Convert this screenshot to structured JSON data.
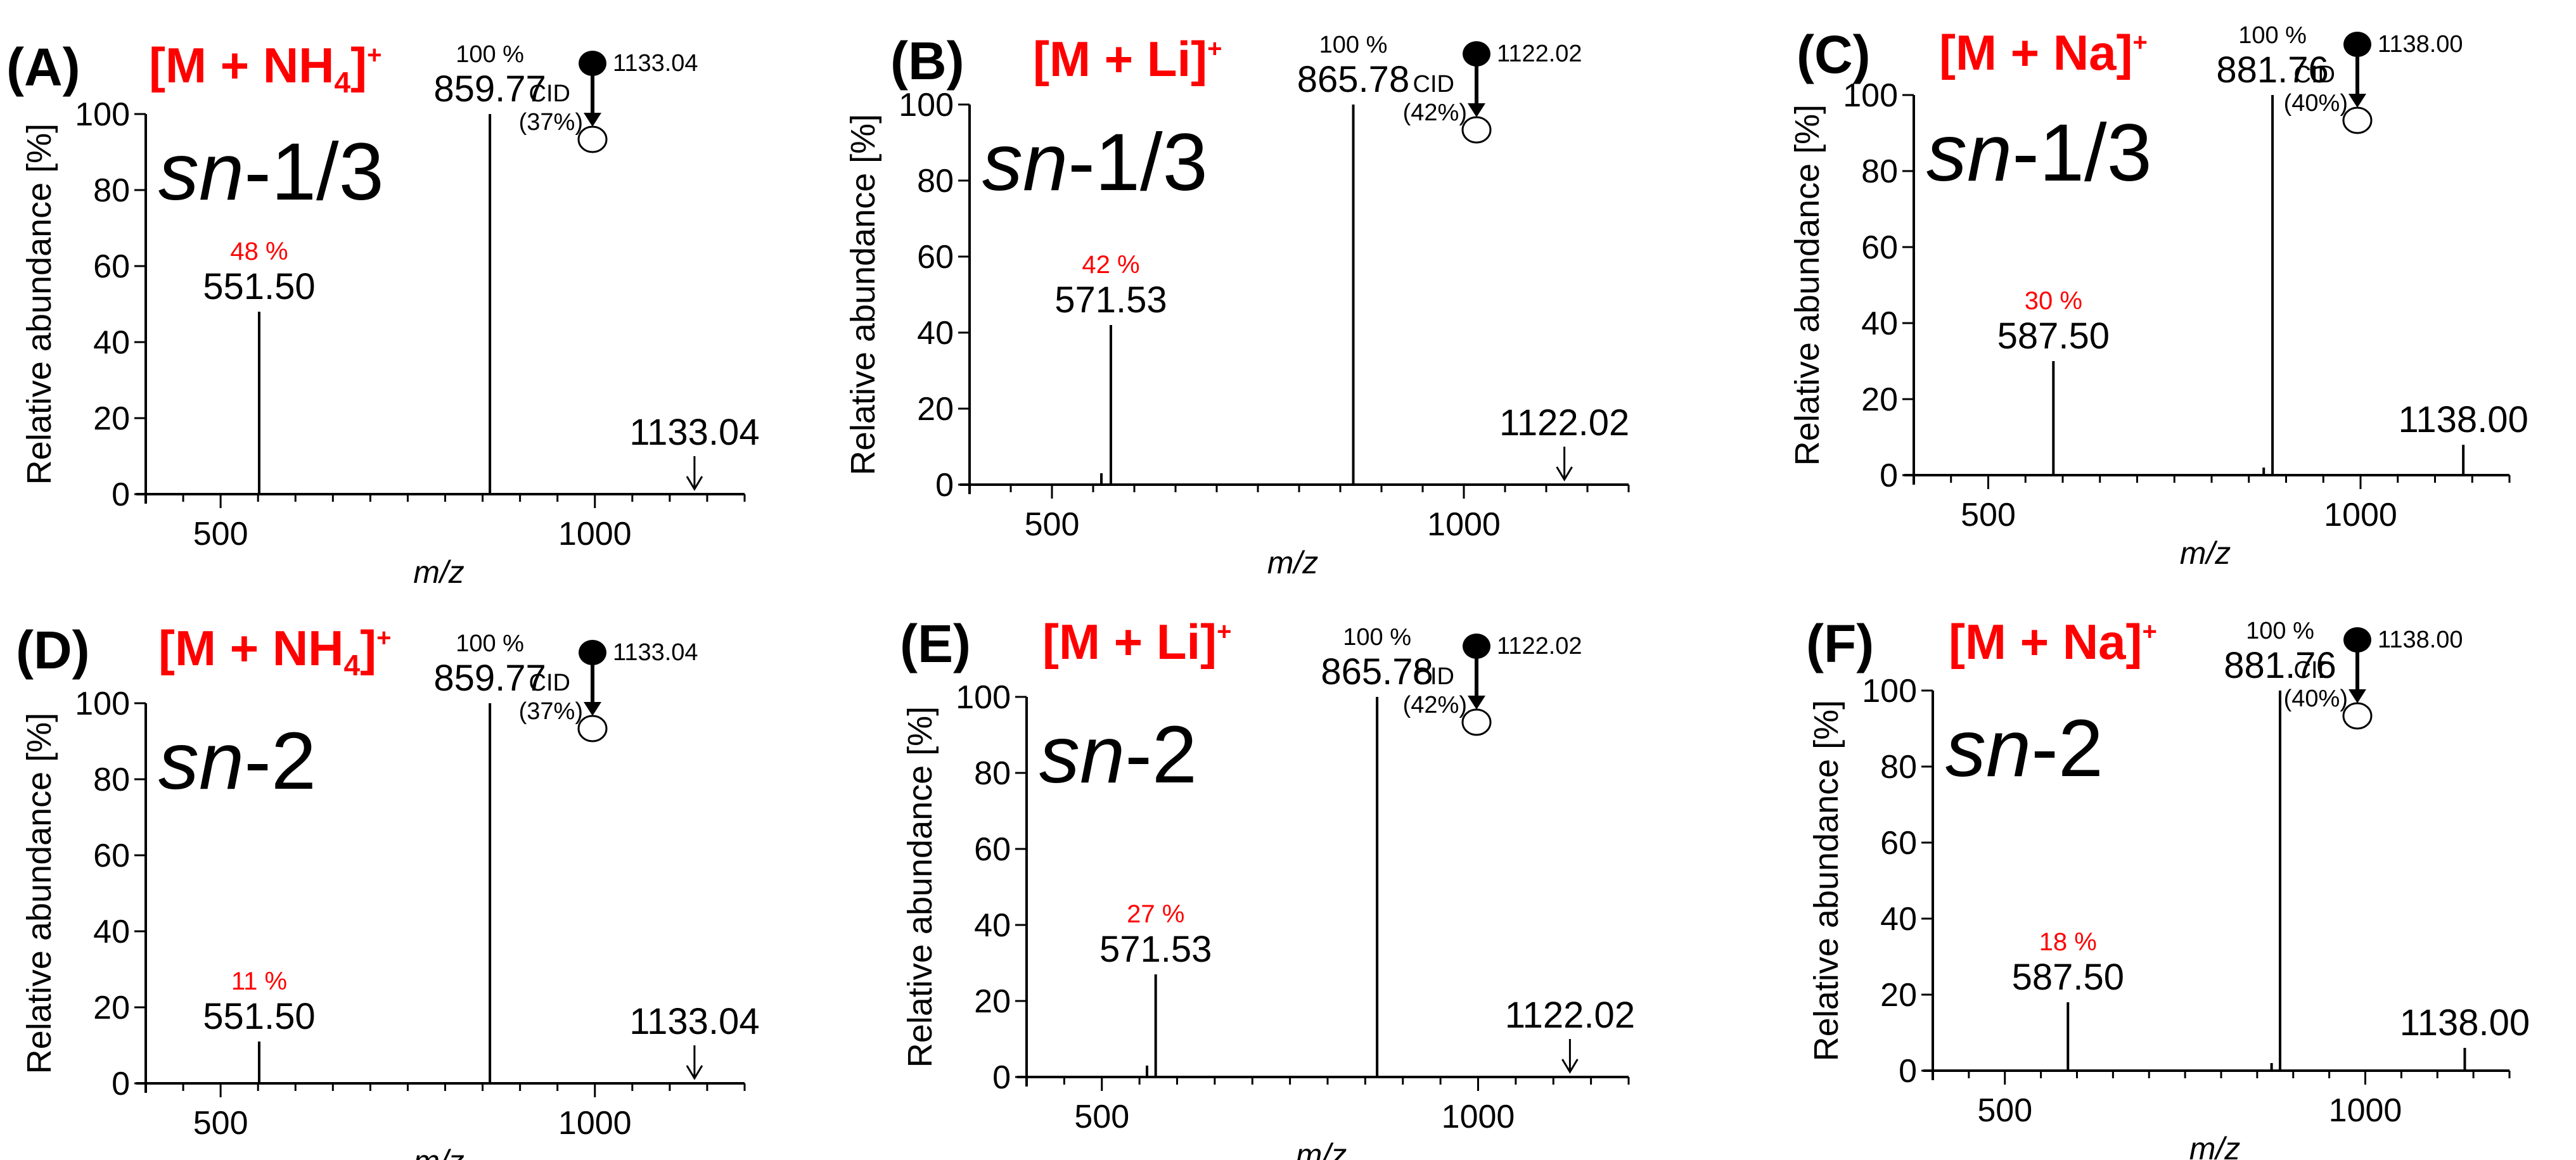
{
  "figure": {
    "ylabel": "Relative abundance [%]",
    "xlabel": "m/z",
    "cid_label": "CID",
    "percent_suffix": " %"
  },
  "chart_data": [
    {
      "type": "bar",
      "panel": "(A)",
      "adduct": "[M + NH",
      "adduct_sub": "4",
      "adduct_close": "]",
      "adduct_sup": "+",
      "position_prefix": "sn",
      "position_suffix": "-1/3",
      "precursor_label": "1133.04",
      "cid_energy": "(37%)",
      "xlim": [
        400,
        1200
      ],
      "ylim": [
        0,
        100
      ],
      "xticks": [
        500,
        1000
      ],
      "yticks": [
        0,
        20,
        40,
        60,
        80,
        100
      ],
      "show_xlabel": true,
      "peaks": [
        {
          "mz": 551.5,
          "label": "551.50",
          "value": 48,
          "pct_label": "48 %",
          "pct_color": "#ff0000"
        },
        {
          "mz": 859.77,
          "label": "859.77",
          "value": 100,
          "pct_label": "100 %",
          "pct_color": "#000000"
        },
        {
          "mz": 1133.04,
          "label": "1133.04",
          "value": 0,
          "arrow": true
        }
      ]
    },
    {
      "type": "bar",
      "panel": "(B)",
      "adduct": "[M + Li]",
      "adduct_sub": "",
      "adduct_close": "",
      "adduct_sup": "+",
      "position_prefix": "sn",
      "position_suffix": "-1/3",
      "precursor_label": "1122.02",
      "cid_energy": "(42%)",
      "xlim": [
        400,
        1200
      ],
      "ylim": [
        0,
        100
      ],
      "xticks": [
        500,
        1000
      ],
      "yticks": [
        0,
        20,
        40,
        60,
        80,
        100
      ],
      "show_xlabel": true,
      "peaks": [
        {
          "mz": 560.0,
          "label": "",
          "value": 3
        },
        {
          "mz": 571.53,
          "label": "571.53",
          "value": 42,
          "pct_label": "42 %",
          "pct_color": "#ff0000"
        },
        {
          "mz": 865.78,
          "label": "865.78",
          "value": 100,
          "pct_label": "100 %",
          "pct_color": "#000000"
        },
        {
          "mz": 1122.02,
          "label": "1122.02",
          "value": 0,
          "arrow": true
        }
      ]
    },
    {
      "type": "bar",
      "panel": "(C)",
      "adduct": "[M + Na]",
      "adduct_sub": "",
      "adduct_close": "",
      "adduct_sup": "+",
      "position_prefix": "sn",
      "position_suffix": "-1/3",
      "precursor_label": "1138.00",
      "cid_energy": "(40%)",
      "xlim": [
        400,
        1200
      ],
      "ylim": [
        0,
        100
      ],
      "xticks": [
        500,
        1000
      ],
      "yticks": [
        0,
        20,
        40,
        60,
        80,
        100
      ],
      "show_xlabel": true,
      "peaks": [
        {
          "mz": 587.5,
          "label": "587.50",
          "value": 30,
          "pct_label": "30 %",
          "pct_color": "#ff0000"
        },
        {
          "mz": 870.0,
          "label": "",
          "value": 2
        },
        {
          "mz": 881.76,
          "label": "881.76",
          "value": 100,
          "pct_label": "100 %",
          "pct_color": "#000000"
        },
        {
          "mz": 1138.0,
          "label": "1138.00",
          "value": 8
        }
      ]
    },
    {
      "type": "bar",
      "panel": "(D)",
      "adduct": "[M + NH",
      "adduct_sub": "4",
      "adduct_close": "]",
      "adduct_sup": "+",
      "position_prefix": "sn",
      "position_suffix": "-2",
      "precursor_label": "1133.04",
      "cid_energy": "(37%)",
      "xlim": [
        400,
        1200
      ],
      "ylim": [
        0,
        100
      ],
      "xticks": [
        500,
        1000
      ],
      "yticks": [
        0,
        20,
        40,
        60,
        80,
        100
      ],
      "show_xlabel": true,
      "peaks": [
        {
          "mz": 551.5,
          "label": "551.50",
          "value": 11,
          "pct_label": "11 %",
          "pct_color": "#ff0000"
        },
        {
          "mz": 859.77,
          "label": "859.77",
          "value": 100,
          "pct_label": "100 %",
          "pct_color": "#000000"
        },
        {
          "mz": 1133.04,
          "label": "1133.04",
          "value": 0,
          "arrow": true
        }
      ]
    },
    {
      "type": "bar",
      "panel": "(E)",
      "adduct": "[M + Li]",
      "adduct_sub": "",
      "adduct_close": "",
      "adduct_sup": "+",
      "position_prefix": "sn",
      "position_suffix": "-2",
      "precursor_label": "1122.02",
      "cid_energy": "(42%)",
      "xlim": [
        400,
        1200
      ],
      "ylim": [
        0,
        100
      ],
      "xticks": [
        500,
        1000
      ],
      "yticks": [
        0,
        20,
        40,
        60,
        80,
        100
      ],
      "show_xlabel": true,
      "peaks": [
        {
          "mz": 560.0,
          "label": "",
          "value": 3
        },
        {
          "mz": 571.53,
          "label": "571.53",
          "value": 27,
          "pct_label": "27 %",
          "pct_color": "#ff0000"
        },
        {
          "mz": 865.78,
          "label": "865.78",
          "value": 100,
          "pct_label": "100 %",
          "pct_color": "#000000"
        },
        {
          "mz": 1122.02,
          "label": "1122.02",
          "value": 0,
          "arrow": true
        }
      ]
    },
    {
      "type": "bar",
      "panel": "(F)",
      "adduct": "[M + Na]",
      "adduct_sub": "",
      "adduct_close": "",
      "adduct_sup": "+",
      "position_prefix": "sn",
      "position_suffix": "-2",
      "precursor_label": "1138.00",
      "cid_energy": "(40%)",
      "xlim": [
        400,
        1200
      ],
      "ylim": [
        0,
        100
      ],
      "xticks": [
        500,
        1000
      ],
      "yticks": [
        0,
        20,
        40,
        60,
        80,
        100
      ],
      "show_xlabel": true,
      "peaks": [
        {
          "mz": 587.5,
          "label": "587.50",
          "value": 18,
          "pct_label": "18 %",
          "pct_color": "#ff0000"
        },
        {
          "mz": 870.0,
          "label": "",
          "value": 2
        },
        {
          "mz": 881.76,
          "label": "881.76",
          "value": 100,
          "pct_label": "100 %",
          "pct_color": "#000000"
        },
        {
          "mz": 1138.0,
          "label": "1138.00",
          "value": 6
        }
      ]
    }
  ]
}
